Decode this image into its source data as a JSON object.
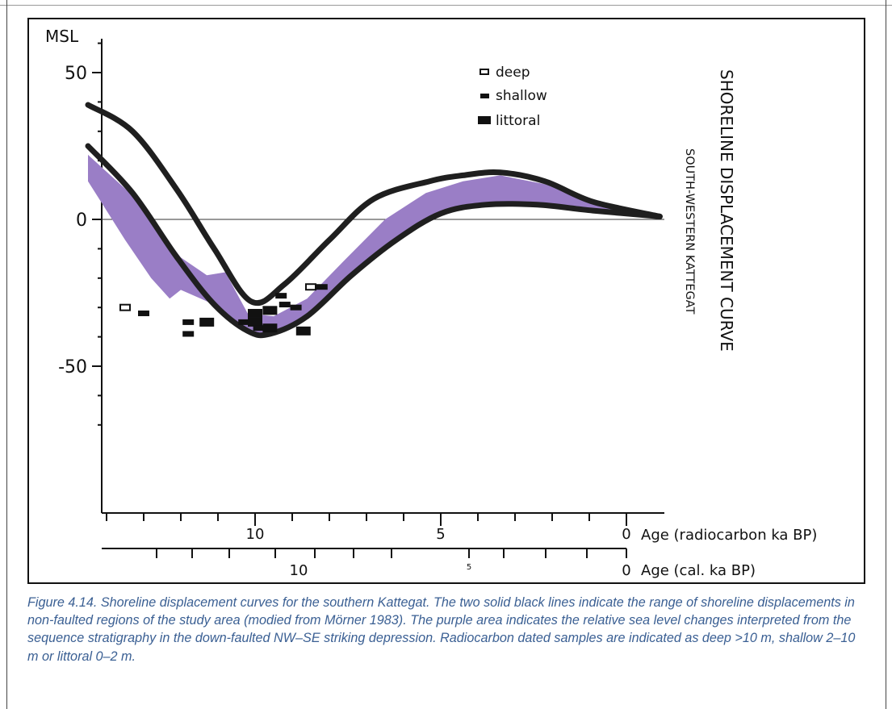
{
  "chart_data": {
    "type": "line",
    "ylabel": "MSL",
    "xlabel": "Age (radiocarbon ka BP)",
    "xlabel2": "Age (cal. ka BP)",
    "title": "SHORELINE DISPLACEMENT CURVE",
    "subtitle": "SOUTH-WESTERN KATTEGAT",
    "ylim": [
      -78,
      62
    ],
    "xlim": [
      14.5,
      -0.9
    ],
    "yticks": [
      {
        "value": 50,
        "label": "50"
      },
      {
        "value": 0,
        "label": "0"
      },
      {
        "value": -50,
        "label": "-50"
      }
    ],
    "xticks_radiocarbon": [
      {
        "value": 10,
        "label": "10"
      },
      {
        "value": 5,
        "label": "5"
      },
      {
        "value": 0,
        "label": "0"
      }
    ],
    "xticks_cal": [
      {
        "value": 10,
        "label": "10"
      },
      {
        "value": 5,
        "label": "5"
      },
      {
        "value": 0,
        "label": "0"
      }
    ],
    "legend": [
      {
        "label": "deep",
        "key": "deep"
      },
      {
        "label": "shallow",
        "key": "shallow"
      },
      {
        "label": "littoral",
        "key": "littoral"
      }
    ],
    "legend_position": "top-right",
    "series": [
      {
        "points": [
          [
            14.5,
            39
          ],
          [
            13.3,
            30
          ],
          [
            12.1,
            10
          ],
          [
            11.1,
            -10
          ],
          [
            10.1,
            -28
          ],
          [
            9.2,
            -22
          ],
          [
            8.0,
            -7
          ],
          [
            6.8,
            7
          ],
          [
            5.3,
            13
          ],
          [
            4.4,
            15
          ],
          [
            3.4,
            16
          ],
          [
            2.2,
            13
          ],
          [
            0.9,
            6
          ],
          [
            -0.9,
            1
          ]
        ]
      },
      {
        "points": [
          [
            14.5,
            25
          ],
          [
            13.3,
            9
          ],
          [
            12.1,
            -13
          ],
          [
            11.1,
            -29
          ],
          [
            10.2,
            -38
          ],
          [
            9.6,
            -39
          ],
          [
            8.6,
            -33
          ],
          [
            7.4,
            -19
          ],
          [
            6.2,
            -7
          ],
          [
            5.0,
            2
          ],
          [
            3.8,
            5
          ],
          [
            2.4,
            5
          ],
          [
            0.9,
            3
          ],
          [
            -0.9,
            1
          ]
        ]
      }
    ],
    "band": {
      "color": "#9a7ec6",
      "upper": [
        [
          14.5,
          22
        ],
        [
          13.2,
          7
        ],
        [
          12.6,
          -3
        ],
        [
          12.0,
          -13
        ],
        [
          11.3,
          -19
        ],
        [
          10.8,
          -18
        ],
        [
          10.2,
          -32
        ],
        [
          9.5,
          -33
        ],
        [
          8.6,
          -27
        ],
        [
          7.6,
          -14
        ],
        [
          6.5,
          0
        ],
        [
          5.4,
          9
        ],
        [
          4.4,
          13
        ],
        [
          3.4,
          15
        ],
        [
          2.2,
          12
        ],
        [
          0.9,
          6
        ],
        [
          -0.9,
          1
        ]
      ],
      "lower": [
        [
          -0.9,
          1
        ],
        [
          0.9,
          3
        ],
        [
          2.4,
          5
        ],
        [
          3.8,
          5
        ],
        [
          5.0,
          2
        ],
        [
          6.2,
          -7
        ],
        [
          7.4,
          -19
        ],
        [
          8.6,
          -33
        ],
        [
          9.6,
          -39
        ],
        [
          10.2,
          -38
        ],
        [
          11.1,
          -29
        ],
        [
          12.0,
          -24
        ],
        [
          12.3,
          -27
        ],
        [
          12.8,
          -20
        ],
        [
          13.5,
          -7
        ],
        [
          14.5,
          13
        ]
      ]
    },
    "samples": [
      {
        "type": "deep",
        "x": 13.5,
        "y": -30
      },
      {
        "type": "shallow",
        "x": 13.0,
        "y": -32
      },
      {
        "type": "shallow",
        "x": 11.8,
        "y": -35
      },
      {
        "type": "shallow",
        "x": 11.8,
        "y": -39
      },
      {
        "type": "littoral",
        "x": 11.3,
        "y": -35
      },
      {
        "type": "shallow",
        "x": 10.3,
        "y": -35
      },
      {
        "type": "littoral",
        "x": 10.0,
        "y": -32
      },
      {
        "type": "littoral",
        "x": 10.0,
        "y": -35
      },
      {
        "type": "shallow",
        "x": 9.9,
        "y": -37
      },
      {
        "type": "littoral",
        "x": 9.6,
        "y": -31
      },
      {
        "type": "littoral",
        "x": 9.6,
        "y": -37
      },
      {
        "type": "shallow",
        "x": 9.2,
        "y": -29
      },
      {
        "type": "shallow",
        "x": 9.3,
        "y": -26
      },
      {
        "type": "shallow",
        "x": 8.9,
        "y": -30
      },
      {
        "type": "littoral",
        "x": 8.7,
        "y": -38
      },
      {
        "type": "deep",
        "x": 8.5,
        "y": -23
      },
      {
        "type": "shallow",
        "x": 8.2,
        "y": -23
      }
    ]
  },
  "caption": "Figure 4.14. Shoreline displacement curves for the southern Kattegat. The two solid black lines indicate the range of shoreline displacements in non-faulted regions of the study area (modied from Mörner 1983). The purple area indicates the relative sea level changes interpreted from the sequence stratigraphy in the down-faulted NW–SE striking depression. Radiocarbon dated samples are indicated as deep >10 m, shallow 2–10 m or littoral 0–2 m."
}
